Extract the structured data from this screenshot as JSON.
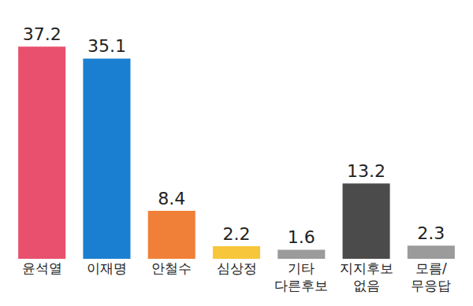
{
  "chart_data": {
    "type": "bar",
    "categories": [
      "윤석열",
      "이재명",
      "안철수",
      "심상정",
      "기타\n다른후보",
      "지지후보\n없음",
      "모름/\n무응답"
    ],
    "values": [
      37.2,
      35.1,
      8.4,
      2.2,
      1.6,
      13.2,
      2.3
    ],
    "colors": [
      "#e8506e",
      "#1b7fd1",
      "#f08038",
      "#f8c63a",
      "#9b9b9b",
      "#4b4b4b",
      "#9b9b9b"
    ],
    "data_labels": true,
    "tick_labels": "x",
    "grid": false
  }
}
